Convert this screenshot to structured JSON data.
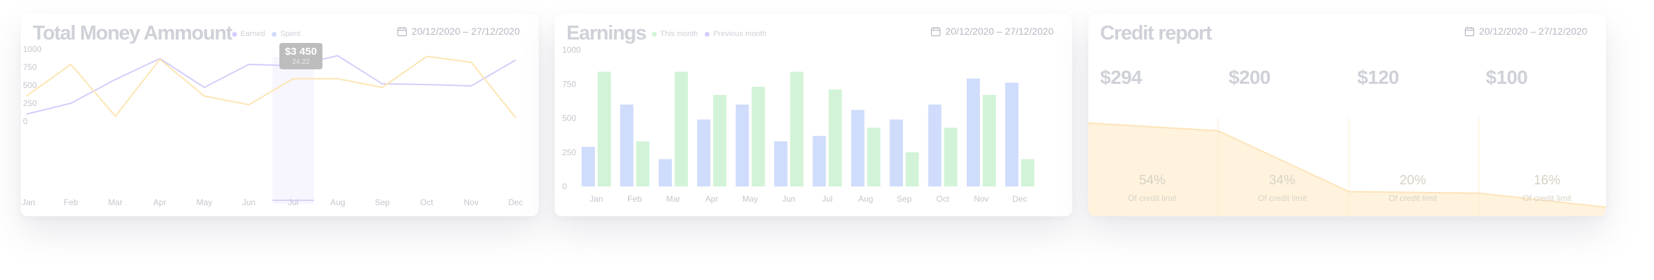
{
  "colors": {
    "earned": "#d4cdfb",
    "spent": "#fde5b2",
    "this_month": "#d2f3d7",
    "previous_month": "#cfdcfb",
    "credit": "#fff3de",
    "credit_line": "#fde3b8",
    "axis_text": "#c4c6cd"
  },
  "chart_data": [
    {
      "type": "line",
      "title": "Total Money Ammount",
      "categories": [
        "Jan",
        "Feb",
        "Mar",
        "Apr",
        "May",
        "Jun",
        "Jul",
        "Aug",
        "Sep",
        "Oct",
        "Nov",
        "Dec"
      ],
      "yticks": [
        "0",
        "250",
        "500",
        "750",
        "1000"
      ],
      "ylim": [
        0,
        1000
      ],
      "series": [
        {
          "name": "Earned",
          "values": [
            100,
            250,
            580,
            870,
            470,
            790,
            770,
            910,
            520,
            510,
            490,
            850
          ]
        },
        {
          "name": "Spent",
          "values": [
            350,
            790,
            70,
            860,
            350,
            230,
            590,
            590,
            470,
            900,
            820,
            50
          ]
        }
      ],
      "legend": [
        "Earned",
        "Spent"
      ],
      "date_range": "20/12/2020 – 27/12/2020",
      "tooltip": {
        "value": "$3 450",
        "sub": "24.22"
      }
    },
    {
      "type": "bar",
      "title": "Earnings",
      "categories": [
        "Jan",
        "Feb",
        "Mar",
        "Apr",
        "May",
        "Jun",
        "Jul",
        "Aug",
        "Sep",
        "Oct",
        "Nov",
        "Dec"
      ],
      "yticks": [
        "0",
        "250",
        "500",
        "750",
        "1000"
      ],
      "ylim": [
        0,
        1000
      ],
      "series": [
        {
          "name": "Previous month",
          "values": [
            290,
            600,
            200,
            490,
            600,
            330,
            370,
            560,
            490,
            600,
            790,
            760
          ]
        },
        {
          "name": "This month",
          "values": [
            840,
            330,
            840,
            670,
            730,
            840,
            710,
            430,
            250,
            430,
            670,
            200
          ]
        }
      ],
      "legend": [
        "This month",
        "Previous month"
      ],
      "date_range": "20/12/2020 – 27/12/2020"
    },
    {
      "type": "area",
      "title": "Credit report",
      "date_range": "20/12/2020 – 27/12/2020",
      "stats": [
        "$294",
        "$200",
        "$120",
        "$100"
      ],
      "segments": [
        {
          "percent": "54%",
          "label": "Of credit limit"
        },
        {
          "percent": "34%",
          "label": "Of credit limit"
        },
        {
          "percent": "20%",
          "label": "Of credit limit"
        },
        {
          "percent": "16%",
          "label": "Of credit limit"
        }
      ],
      "values": [
        54,
        49,
        10,
        9,
        0
      ]
    }
  ]
}
